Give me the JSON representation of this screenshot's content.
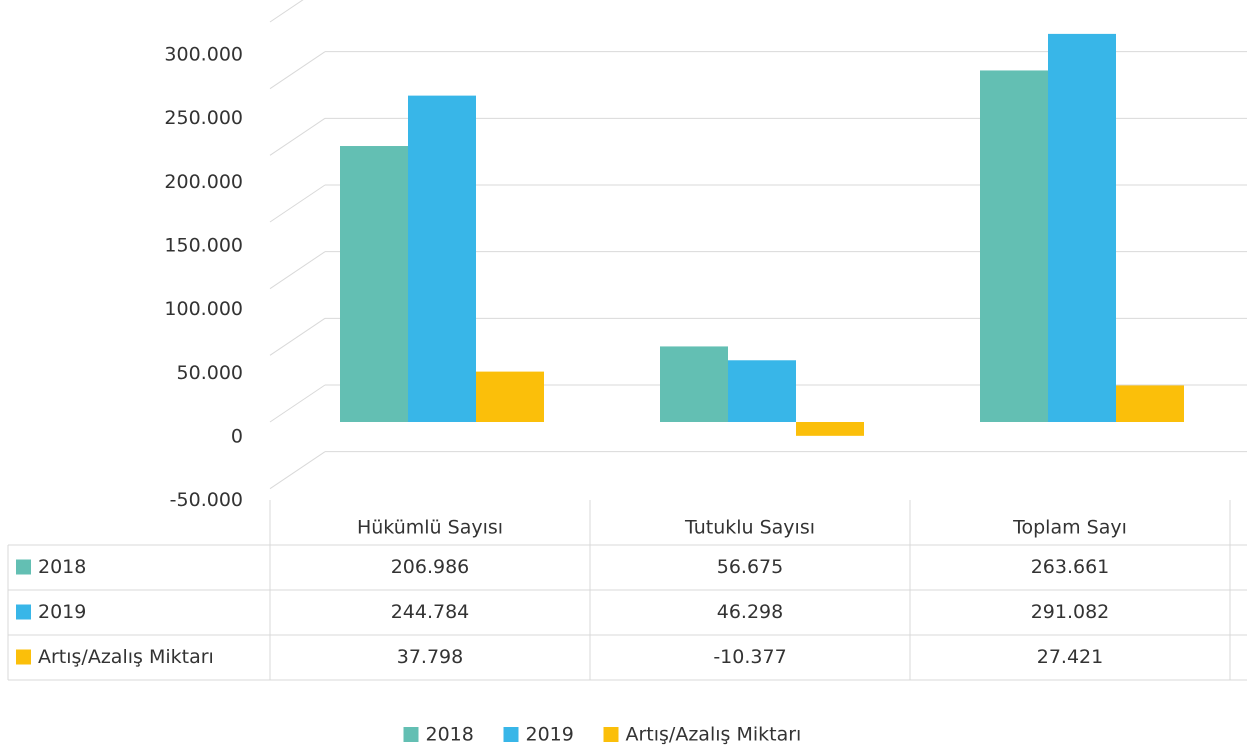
{
  "chart_data": {
    "type": "bar",
    "categories": [
      "Hükümlü Sayısı",
      "Tutuklu Sayısı",
      "Toplam Sayı"
    ],
    "series": [
      {
        "name": "2018",
        "color": "#63bfb3",
        "values": [
          206986,
          56675,
          263661
        ],
        "value_labels": [
          "206.986",
          "56.675",
          "263.661"
        ]
      },
      {
        "name": "2019",
        "color": "#38b6e8",
        "values": [
          244784,
          46298,
          291082
        ],
        "value_labels": [
          "244.784",
          "46.298",
          "291.082"
        ]
      },
      {
        "name": "Artış/Azalış Miktarı",
        "color": "#fbbf0a",
        "values": [
          37798,
          -10377,
          27421
        ],
        "value_labels": [
          "37.798",
          "-10.377",
          "27.421"
        ]
      }
    ],
    "ylim": [
      -50000,
      300000
    ],
    "yticks": [
      {
        "value": -50000,
        "label": "-50.000"
      },
      0,
      {
        "value": 50000,
        "label": "50.000"
      },
      {
        "value": 100000,
        "label": "100.000"
      },
      {
        "value": 150000,
        "label": "150.000"
      },
      {
        "value": 200000,
        "label": "200.000"
      },
      {
        "value": 250000,
        "label": "250.000"
      },
      {
        "value": 300000,
        "label": "300.000"
      }
    ],
    "grid": true,
    "legend": "bottom"
  }
}
